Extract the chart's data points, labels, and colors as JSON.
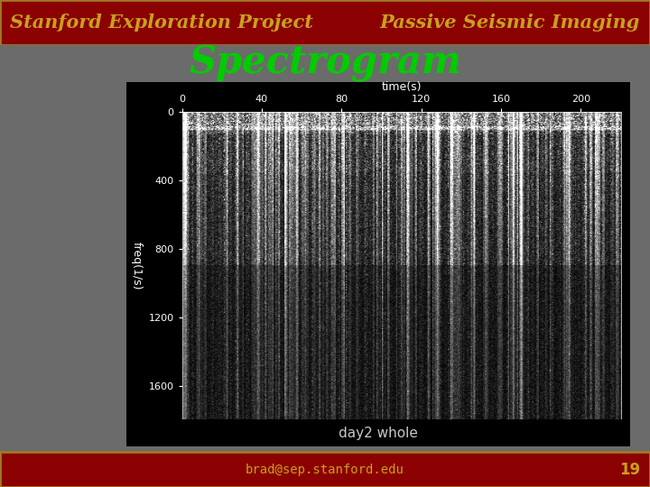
{
  "bg_color": "#6b6b6b",
  "header_bg": "#8b0000",
  "header_border": "#a07828",
  "header_text_left": "Stanford Exploration Project",
  "header_text_right": "Passive Seismic Imaging",
  "header_text_color": "#c8a020",
  "title": "Spectrogram",
  "title_color": "#00cc00",
  "footer_bg": "#8b0000",
  "footer_border": "#a07828",
  "footer_text": "brad@sep.stanford.edu",
  "footer_text_color": "#c8a020",
  "footer_number": "19",
  "plot_bg": "#000000",
  "xlabel": "time(s)",
  "ylabel": "freq(1/s)",
  "xticks": [
    0,
    40,
    80,
    120,
    160,
    200
  ],
  "yticks": [
    0,
    400,
    800,
    1200,
    1600
  ],
  "xlim": [
    0,
    220
  ],
  "ylim": [
    0,
    1800
  ],
  "caption": "day2 whole",
  "caption_color": "#c8c8c8",
  "tick_color": "#ffffff",
  "label_color": "#ffffff"
}
